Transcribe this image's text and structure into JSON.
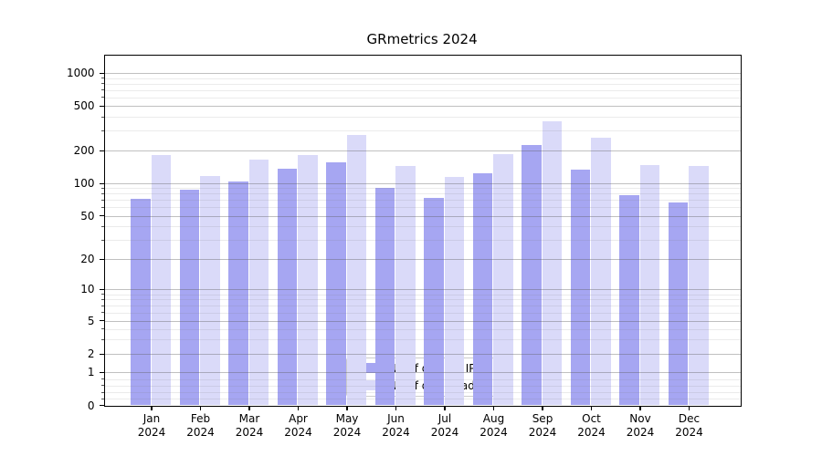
{
  "chart_data": {
    "type": "bar",
    "title": "GRmetrics 2024",
    "categories": [
      "Jan",
      "Feb",
      "Mar",
      "Apr",
      "May",
      "Jun",
      "Jul",
      "Aug",
      "Sep",
      "Oct",
      "Nov",
      "Dec"
    ],
    "category_year": "2024",
    "series": [
      {
        "name": "Nb of distinct IPs",
        "color": "#a6a6f2",
        "values": [
          72,
          88,
          103,
          136,
          155,
          90,
          74,
          124,
          222,
          134,
          78,
          66
        ]
      },
      {
        "name": "Nb of downloads",
        "color": "#dadaf9",
        "values": [
          183,
          117,
          165,
          183,
          277,
          145,
          114,
          185,
          363,
          260,
          147,
          143
        ]
      }
    ],
    "yticks": [
      0,
      1,
      2,
      5,
      10,
      20,
      50,
      100,
      200,
      500,
      1000
    ],
    "minor_yticks": [
      0.2,
      0.4,
      0.6,
      0.8,
      3,
      4,
      6,
      7,
      8,
      9,
      30,
      40,
      60,
      70,
      80,
      90,
      300,
      400,
      600,
      700,
      800,
      900
    ],
    "y_scale": "symlog (log above 1, linear 0-1)",
    "ylim": [
      0,
      1500
    ],
    "xlabel": "",
    "ylabel": "",
    "grid": "horizontal major and minor gridlines",
    "legend_position": "lower center"
  }
}
